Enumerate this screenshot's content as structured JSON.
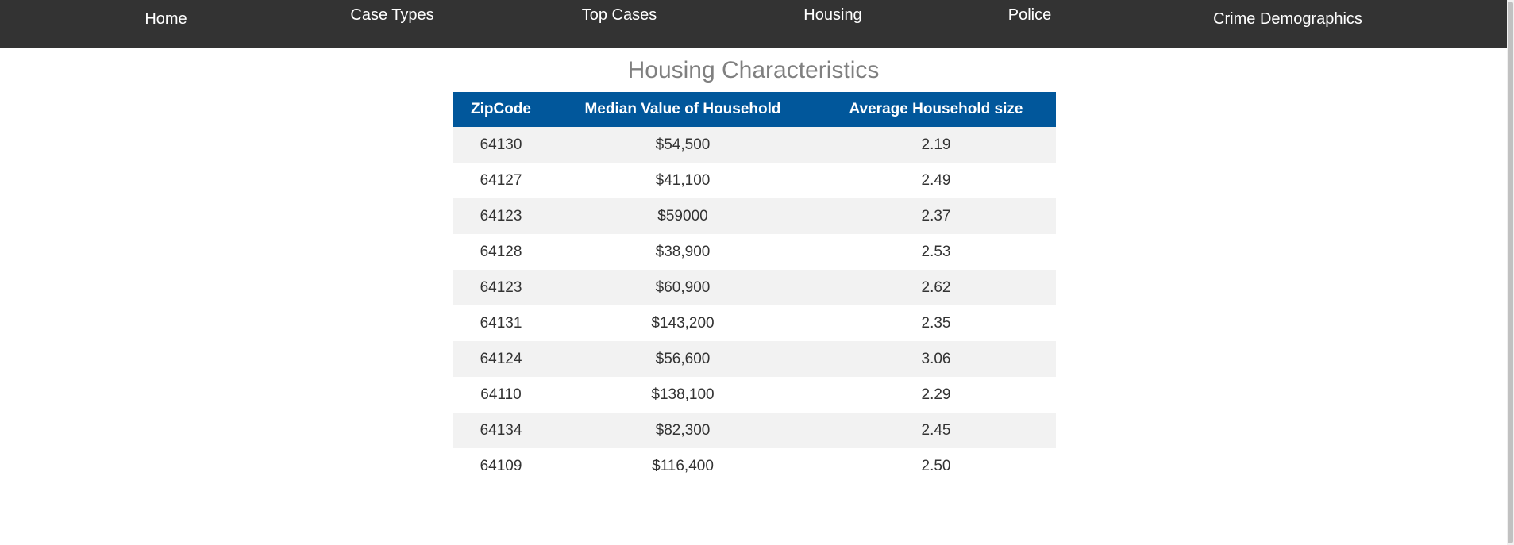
{
  "nav": {
    "items": [
      {
        "label": "Home"
      },
      {
        "label": "Case Types"
      },
      {
        "label": "Top Cases"
      },
      {
        "label": "Housing"
      },
      {
        "label": "Police"
      },
      {
        "label": "Crime Demographics"
      }
    ]
  },
  "main": {
    "title": "Housing Characteristics",
    "table": {
      "headers": [
        "ZipCode",
        "Median Value of Household",
        "Average Household size"
      ],
      "rows": [
        [
          "64130",
          "$54,500",
          "2.19"
        ],
        [
          "64127",
          "$41,100",
          "2.49"
        ],
        [
          "64123",
          "$59000",
          "2.37"
        ],
        [
          "64128",
          "$38,900",
          "2.53"
        ],
        [
          "64123",
          "$60,900",
          "2.62"
        ],
        [
          "64131",
          "$143,200",
          "2.35"
        ],
        [
          "64124",
          "$56,600",
          "3.06"
        ],
        [
          "64110",
          "$138,100",
          "2.29"
        ],
        [
          "64134",
          "$82,300",
          "2.45"
        ],
        [
          "64109",
          "$116,400",
          "2.50"
        ]
      ]
    }
  },
  "colors": {
    "navbar": "#333333",
    "table_header": "#01579b",
    "row_stripe": "#f2f2f2",
    "title": "#808080"
  }
}
